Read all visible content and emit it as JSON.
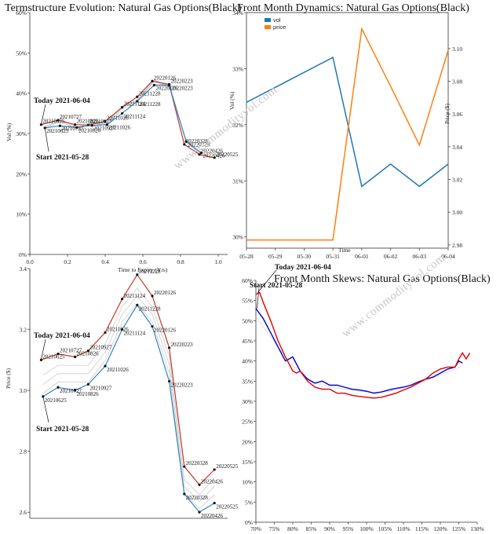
{
  "watermark": "www.commodityvol.com",
  "chart_data": [
    {
      "type": "line",
      "title": "Termstructure Evolution: Natural Gas Options(Black)",
      "xlabel": "Time to Expiry (Yrs)",
      "ylabel": "Vol (%)",
      "xlim": [
        0,
        1.05
      ],
      "ylim": [
        0,
        60
      ],
      "xticks": [
        0.0,
        0.2,
        0.4,
        0.6,
        0.8,
        1.0
      ],
      "xtick_labels": [
        "0.0",
        "0.2",
        "0.4",
        "0.6",
        "0.8",
        "1.0"
      ],
      "yticks": [
        0,
        10,
        20,
        30,
        40,
        50,
        60
      ],
      "ytick_labels": [
        "0%",
        "10%",
        "20%",
        "30%",
        "40%",
        "50%",
        "60%"
      ],
      "series": [
        {
          "color": "#c0392b",
          "role": "today",
          "x": [
            0.06,
            0.15,
            0.24,
            0.31,
            0.4,
            0.49,
            0.57,
            0.65,
            0.74,
            0.82,
            0.9,
            0.98
          ],
          "y": [
            32.2,
            33.3,
            32.2,
            32.1,
            33.0,
            36.5,
            39.1,
            43.0,
            42.2,
            27.3,
            24.8,
            24.0
          ],
          "labels": [
            "20210625",
            "20210727",
            "20210826",
            "20210927",
            "20211026",
            "20211124",
            "20211228",
            "20220126",
            "20220223",
            "20220328",
            "20220426",
            "20220525"
          ]
        },
        {
          "color": "#2e86c1",
          "role": "start",
          "x": [
            0.08,
            0.16,
            0.25,
            0.33,
            0.41,
            0.49,
            0.57,
            0.66,
            0.74,
            0.83,
            0.91
          ],
          "y": [
            31.4,
            31.9,
            31.5,
            32.0,
            32.2,
            35.0,
            38.0,
            42.0,
            42.0,
            28.0,
            25.2
          ],
          "labels": [
            "20210625",
            "20210727",
            "20210826",
            "20210927",
            "20211026",
            "20211124",
            "20211228",
            "20220126",
            "20220223",
            "20220328",
            "20220426"
          ]
        }
      ],
      "annotations": [
        {
          "text": "Today 2021-06-04"
        },
        {
          "text": "Start 2021-05-28"
        }
      ]
    },
    {
      "type": "line",
      "title": "Front Month Dynamics: Natural Gas Options(Black)",
      "xlabel": "Time",
      "ylabel_left": "Vol (%)",
      "ylabel_right": "Price ($)",
      "categories": [
        "05-28",
        "05-29",
        "05-30",
        "05-31",
        "06-01",
        "06-02",
        "06-03",
        "06-04"
      ],
      "ylim_left": [
        29.8,
        34.0
      ],
      "ylim_right": [
        2.978,
        3.122
      ],
      "yticks_left": [
        "30%",
        "31%",
        "32%",
        "33%",
        "34%"
      ],
      "yticks_right": [
        "2.98",
        "3.00",
        "3.02",
        "3.04",
        "3.06",
        "3.08",
        "3.10"
      ],
      "legend": [
        {
          "name": "vol",
          "color": "#1f77b4"
        },
        {
          "name": "price",
          "color": "#ff7f0e"
        }
      ],
      "legend_position": "top-left",
      "series": [
        {
          "name": "vol",
          "axis": "left",
          "color": "#1f77b4",
          "x": [
            0,
            3,
            4,
            5,
            6,
            7
          ],
          "values": [
            32.4,
            33.2,
            30.9,
            31.3,
            30.9,
            31.3
          ]
        },
        {
          "name": "price",
          "axis": "right",
          "color": "#ff7f0e",
          "x": [
            0,
            3,
            4,
            5,
            6,
            7
          ],
          "values": [
            2.983,
            2.983,
            3.112,
            3.077,
            3.041,
            3.099
          ]
        }
      ]
    },
    {
      "type": "line",
      "xlabel": "",
      "ylabel": "Price ($)",
      "xlim": [
        0,
        1.05
      ],
      "ylim": [
        2.58,
        3.4
      ],
      "yticks": [
        2.6,
        2.8,
        3.0,
        3.2,
        3.4
      ],
      "ytick_labels": [
        "2.6",
        "2.8",
        "3.0",
        "3.2",
        "3.4"
      ],
      "series": [
        {
          "color": "#c0392b",
          "role": "today",
          "x": [
            0.06,
            0.15,
            0.24,
            0.31,
            0.4,
            0.49,
            0.57,
            0.65,
            0.74,
            0.82,
            0.9,
            0.98
          ],
          "y": [
            3.1,
            3.12,
            3.11,
            3.13,
            3.19,
            3.3,
            3.38,
            3.31,
            3.14,
            2.75,
            2.69,
            2.74
          ],
          "labels": [
            "20210625",
            "20210727",
            "20210826",
            "20210927",
            "20211026",
            "20211124",
            "20211228",
            "20220126",
            "20220223",
            "20220328",
            "20220426",
            "20220525"
          ]
        },
        {
          "color": "#2e86c1",
          "role": "start",
          "x": [
            0.07,
            0.15,
            0.24,
            0.31,
            0.4,
            0.49,
            0.57,
            0.65,
            0.74,
            0.82,
            0.9,
            0.98
          ],
          "y": [
            2.98,
            3.01,
            3.0,
            3.02,
            3.08,
            3.2,
            3.28,
            3.21,
            3.03,
            2.66,
            2.6,
            2.63
          ],
          "labels": [
            "20210625",
            "20210727",
            "20210826",
            "20210927",
            "20211026",
            "20211124",
            "20211228",
            "20220126",
            "20220223",
            "20220328",
            "20220426",
            "20220525"
          ]
        }
      ],
      "annotations": [
        {
          "text": "Today 2021-06-04"
        },
        {
          "text": "Start 2021-05-28"
        }
      ]
    },
    {
      "type": "line",
      "title": "Front Month Skews: Natural Gas Options(Black)",
      "xlim": [
        70,
        130
      ],
      "ylim": [
        0,
        60
      ],
      "xticks": [
        70,
        75,
        80,
        85,
        90,
        95,
        100,
        105,
        110,
        115,
        120,
        125,
        130
      ],
      "xtick_labels": [
        "70%",
        "75%",
        "80%",
        "85%",
        "90%",
        "95%",
        "100%",
        "105%",
        "110%",
        "115%",
        "120%",
        "125%",
        "130%"
      ],
      "yticks": [
        0,
        5,
        10,
        15,
        20,
        25,
        30,
        35,
        40,
        45,
        50,
        55,
        60
      ],
      "ytick_labels": [
        "0%",
        "5%",
        "10%",
        "15%",
        "20%",
        "25%",
        "30%",
        "35%",
        "40%",
        "45%",
        "50%",
        "55%",
        "60%"
      ],
      "series": [
        {
          "color": "#e00000",
          "role": "today",
          "x": [
            70,
            71,
            72,
            74,
            76,
            78,
            80,
            81,
            82,
            84,
            86,
            88,
            90,
            92,
            94,
            96,
            98,
            100,
            102,
            104,
            106,
            108,
            110,
            112,
            114,
            116,
            118,
            120,
            122,
            124,
            125,
            126,
            127,
            128
          ],
          "y": [
            56.5,
            57.0,
            54.5,
            50.0,
            45.0,
            41.0,
            37.5,
            37.0,
            37.5,
            35.0,
            33.5,
            33.0,
            33.0,
            32.0,
            32.0,
            31.5,
            31.2,
            31.0,
            30.8,
            31.0,
            31.5,
            32.0,
            32.8,
            33.5,
            34.5,
            35.5,
            37.0,
            38.0,
            38.5,
            38.5,
            40.5,
            42.0,
            40.5,
            42.0
          ]
        },
        {
          "color": "#0000c8",
          "role": "start",
          "x": [
            70,
            72,
            74,
            76,
            78,
            80,
            82,
            84,
            86,
            88,
            90,
            92,
            94,
            96,
            98,
            100,
            102,
            104,
            106,
            108,
            110,
            112,
            114,
            116,
            118,
            120,
            122,
            124,
            125,
            126
          ],
          "y": [
            53.0,
            50.5,
            47.0,
            43.5,
            40.0,
            41.0,
            37.5,
            35.5,
            34.5,
            35.0,
            34.0,
            34.0,
            33.5,
            33.0,
            32.8,
            32.5,
            32.0,
            32.3,
            32.8,
            33.2,
            33.5,
            34.0,
            34.8,
            35.5,
            36.0,
            37.0,
            38.0,
            38.5,
            40.0,
            39.5
          ]
        },
        {
          "color": "#d8d8d8",
          "role": "history",
          "x": [
            70,
            74,
            78,
            82,
            86,
            90,
            94,
            98,
            102,
            106,
            110,
            114,
            118,
            122,
            126
          ],
          "y": [
            51,
            46,
            41,
            37,
            34.5,
            33.5,
            33,
            32.5,
            32.2,
            32.5,
            33.2,
            34.5,
            35.8,
            37.2,
            38.8
          ]
        }
      ],
      "annotations": [
        {
          "text": "Today 2021-06-04"
        },
        {
          "text": "Start 2021-05-28"
        }
      ]
    }
  ]
}
